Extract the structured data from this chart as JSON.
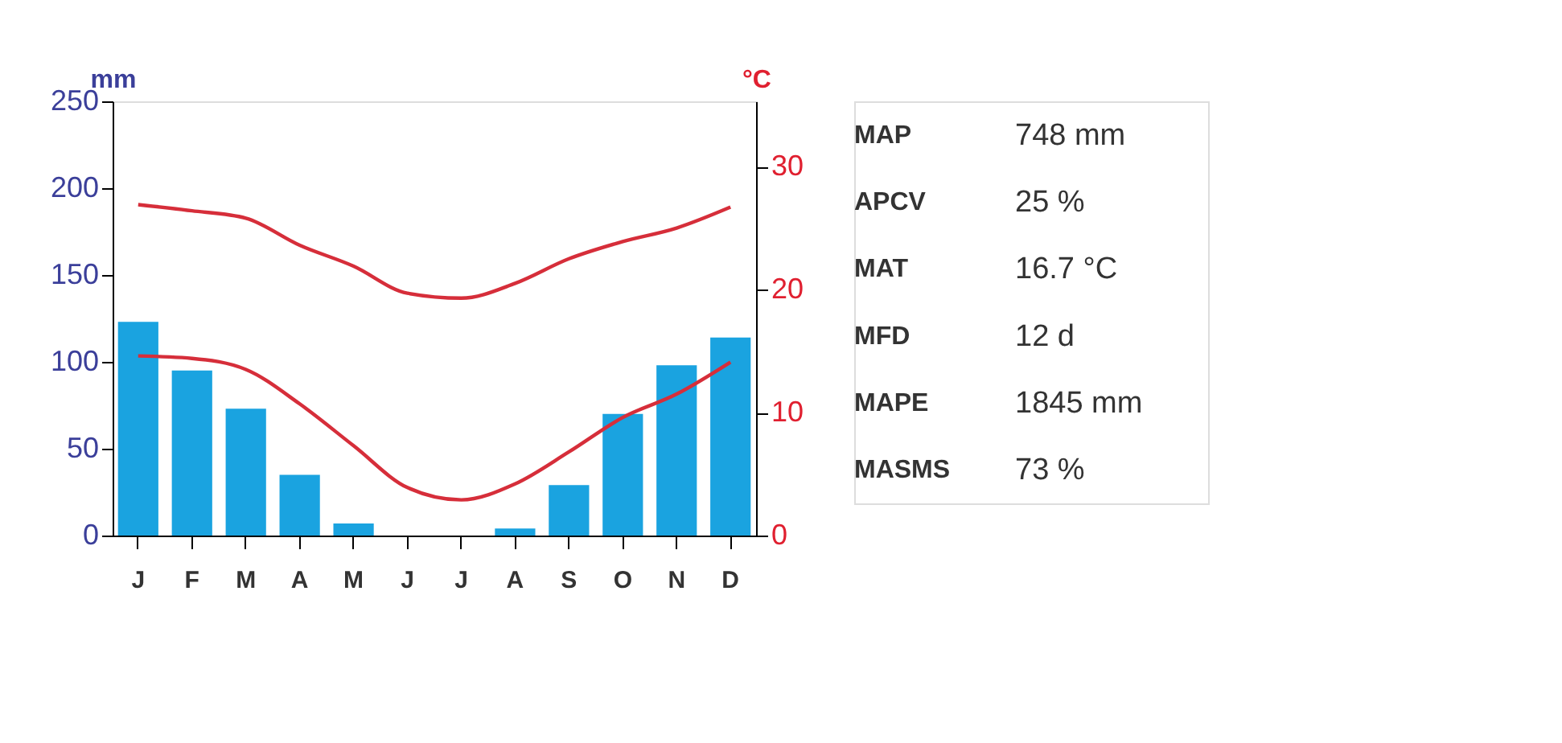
{
  "chart_data": {
    "type": "bar",
    "ylabel": "mm",
    "y2label": "°C",
    "categories": [
      "J",
      "F",
      "M",
      "A",
      "M",
      "J",
      "J",
      "A",
      "S",
      "O",
      "N",
      "D"
    ],
    "series": [
      {
        "color": "#1aa3e0",
        "axis": "y",
        "values": [
          123,
          95,
          73,
          35,
          7,
          0,
          0,
          4,
          29,
          70,
          98,
          114
        ]
      },
      {
        "type": "line",
        "color": "#d62e3a",
        "axis": "y2",
        "values": [
          26.9,
          26.4,
          25.8,
          23.6,
          21.9,
          19.7,
          19.3,
          20.5,
          22.5,
          23.9,
          25.0,
          26.7
        ]
      },
      {
        "type": "line",
        "color": "#d62e3a",
        "axis": "y2",
        "values": [
          14.6,
          14.4,
          13.5,
          10.7,
          7.3,
          3.9,
          2.9,
          4.2,
          6.8,
          9.6,
          11.5,
          14.1
        ]
      }
    ],
    "ylim": [
      0,
      250
    ],
    "yticks": [
      0,
      50,
      100,
      150,
      200,
      250
    ],
    "y2lim": [
      0,
      35.3
    ],
    "y2ticks": [
      0,
      10,
      20,
      30
    ],
    "grid": false,
    "annotations": [
      "MAP 748 mm",
      "APCV 25 %",
      "MAT 16.7 °C",
      "MFD 12 d",
      "MAPE 1845 mm",
      "MASMS 73 %"
    ]
  }
}
